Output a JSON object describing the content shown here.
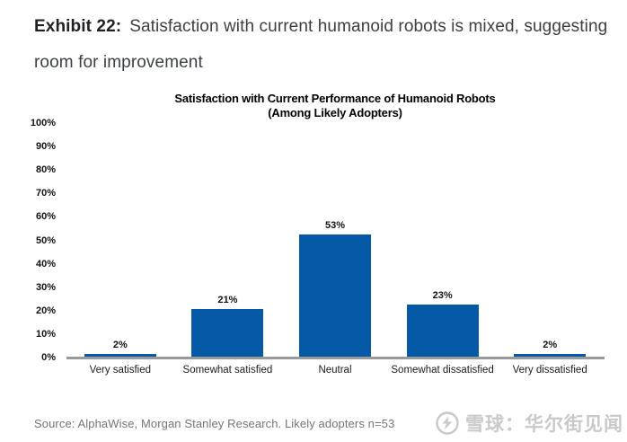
{
  "header": {
    "exhibit_label": "Exhibit 22:",
    "title": "Satisfaction with current humanoid robots is mixed, suggesting room for improvement"
  },
  "chart_data": {
    "type": "bar",
    "title": "Satisfaction with Current Performance of Humanoid Robots",
    "subtitle": "(Among Likely Adopters)",
    "categories": [
      "Very satisfied",
      "Somewhat satisfied",
      "Neutral",
      "Somewhat dissatisfied",
      "Very dissatisfied"
    ],
    "values": [
      2,
      21,
      53,
      23,
      2
    ],
    "value_labels": [
      "2%",
      "21%",
      "53%",
      "23%",
      "2%"
    ],
    "xlabel": "",
    "ylabel": "",
    "ylim": [
      0,
      100
    ],
    "ytick_step": 10,
    "ytick_labels": [
      "0%",
      "10%",
      "20%",
      "30%",
      "40%",
      "50%",
      "60%",
      "70%",
      "80%",
      "90%",
      "100%"
    ],
    "grid": false,
    "legend": false,
    "bar_color": "#0659a7",
    "axis_line_color": "#999999",
    "label_color": "#111111"
  },
  "footer": {
    "source": "Source: AlphaWise, Morgan Stanley Research. Likely adopters n=53",
    "watermark": {
      "logo": "xueqiu-logo",
      "text": "雪球：华尔街见闻"
    }
  }
}
